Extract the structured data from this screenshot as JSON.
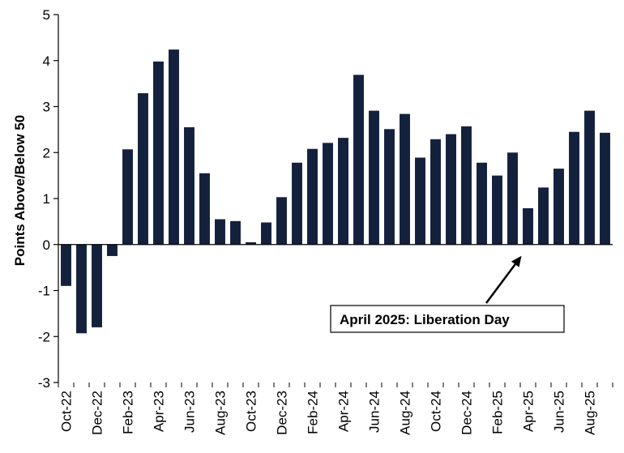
{
  "chart_data": {
    "type": "bar",
    "ylabel": "Points Above/Below 50",
    "xlabel": "",
    "title": "",
    "ylim": [
      -3,
      5
    ],
    "yticks": [
      "-3",
      "-2",
      "-1",
      "0",
      "1",
      "2",
      "3",
      "4",
      "5"
    ],
    "bar_color": "#14213d",
    "categories": [
      "Oct-22",
      "Nov-22",
      "Dec-22",
      "Jan-23",
      "Feb-23",
      "Mar-23",
      "Apr-23",
      "May-23",
      "Jun-23",
      "Jul-23",
      "Aug-23",
      "Sep-23",
      "Oct-23",
      "Nov-23",
      "Dec-23",
      "Jan-24",
      "Feb-24",
      "Mar-24",
      "Apr-24",
      "May-24",
      "Jun-24",
      "Jul-24",
      "Aug-24",
      "Sep-24",
      "Oct-24",
      "Nov-24",
      "Dec-24",
      "Jan-25",
      "Feb-25",
      "Mar-25",
      "Apr-25",
      "May-25",
      "Jun-25",
      "Jul-25",
      "Aug-25",
      "Sep-25"
    ],
    "xtick_labels": [
      "Oct-22",
      "",
      "Dec-22",
      "",
      "Feb-23",
      "",
      "Apr-23",
      "",
      "Jun-23",
      "",
      "Aug-23",
      "",
      "Oct-23",
      "",
      "Dec-23",
      "",
      "Feb-24",
      "",
      "Apr-24",
      "",
      "Jun-24",
      "",
      "Aug-24",
      "",
      "Oct-24",
      "",
      "Dec-24",
      "",
      "Feb-25",
      "",
      "Apr-25",
      "",
      "Jun-25",
      "",
      "Aug-25",
      ""
    ],
    "values": [
      -0.9,
      -1.93,
      -1.8,
      -0.25,
      2.07,
      3.29,
      3.98,
      4.24,
      2.55,
      1.55,
      0.55,
      0.51,
      0.05,
      0.48,
      1.03,
      1.78,
      2.08,
      2.21,
      2.32,
      3.69,
      2.91,
      2.51,
      2.84,
      1.89,
      2.29,
      2.4,
      2.57,
      1.78,
      1.5,
      2.0,
      0.79,
      1.24,
      1.65,
      2.45,
      2.91,
      2.43
    ],
    "grid": false,
    "annotation": {
      "text": "April 2025: Liberation Day",
      "target_category": "Apr-25"
    }
  }
}
